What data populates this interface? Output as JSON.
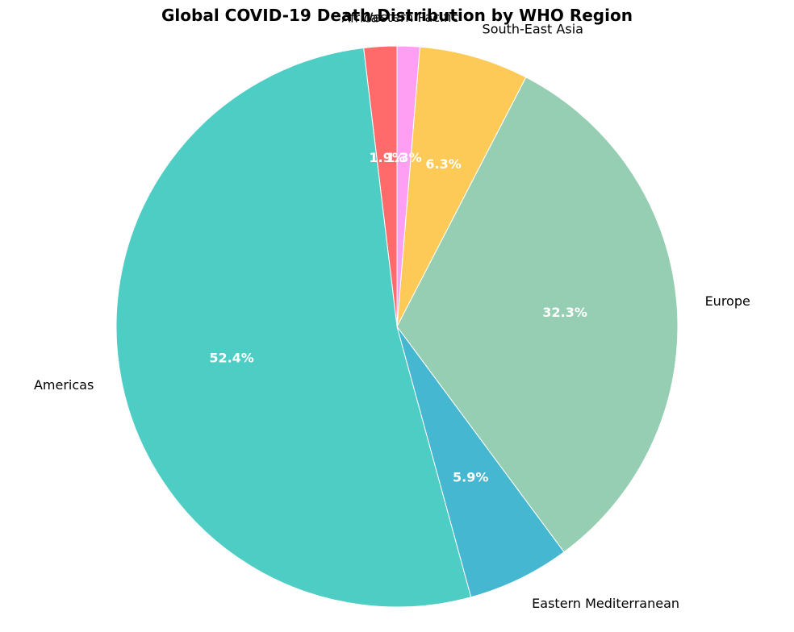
{
  "chart_data": {
    "type": "pie",
    "title": "Global COVID-19 Death Distribution by WHO Region",
    "start_angle_deg": 90,
    "direction": "counterclockwise",
    "label_format": "percent_one_decimal",
    "slices": [
      {
        "label": "Africa",
        "value": 1.9,
        "color": "#FF6B6B"
      },
      {
        "label": "Americas",
        "value": 52.4,
        "color": "#4ECDC4"
      },
      {
        "label": "Eastern Mediterranean",
        "value": 5.9,
        "color": "#45B7D1"
      },
      {
        "label": "Europe",
        "value": 32.3,
        "color": "#96CEB4"
      },
      {
        "label": "South-East Asia",
        "value": 6.3,
        "color": "#FECA57"
      },
      {
        "label": "Western Pacific",
        "value": 1.3,
        "color": "#FF9FF3"
      }
    ]
  }
}
